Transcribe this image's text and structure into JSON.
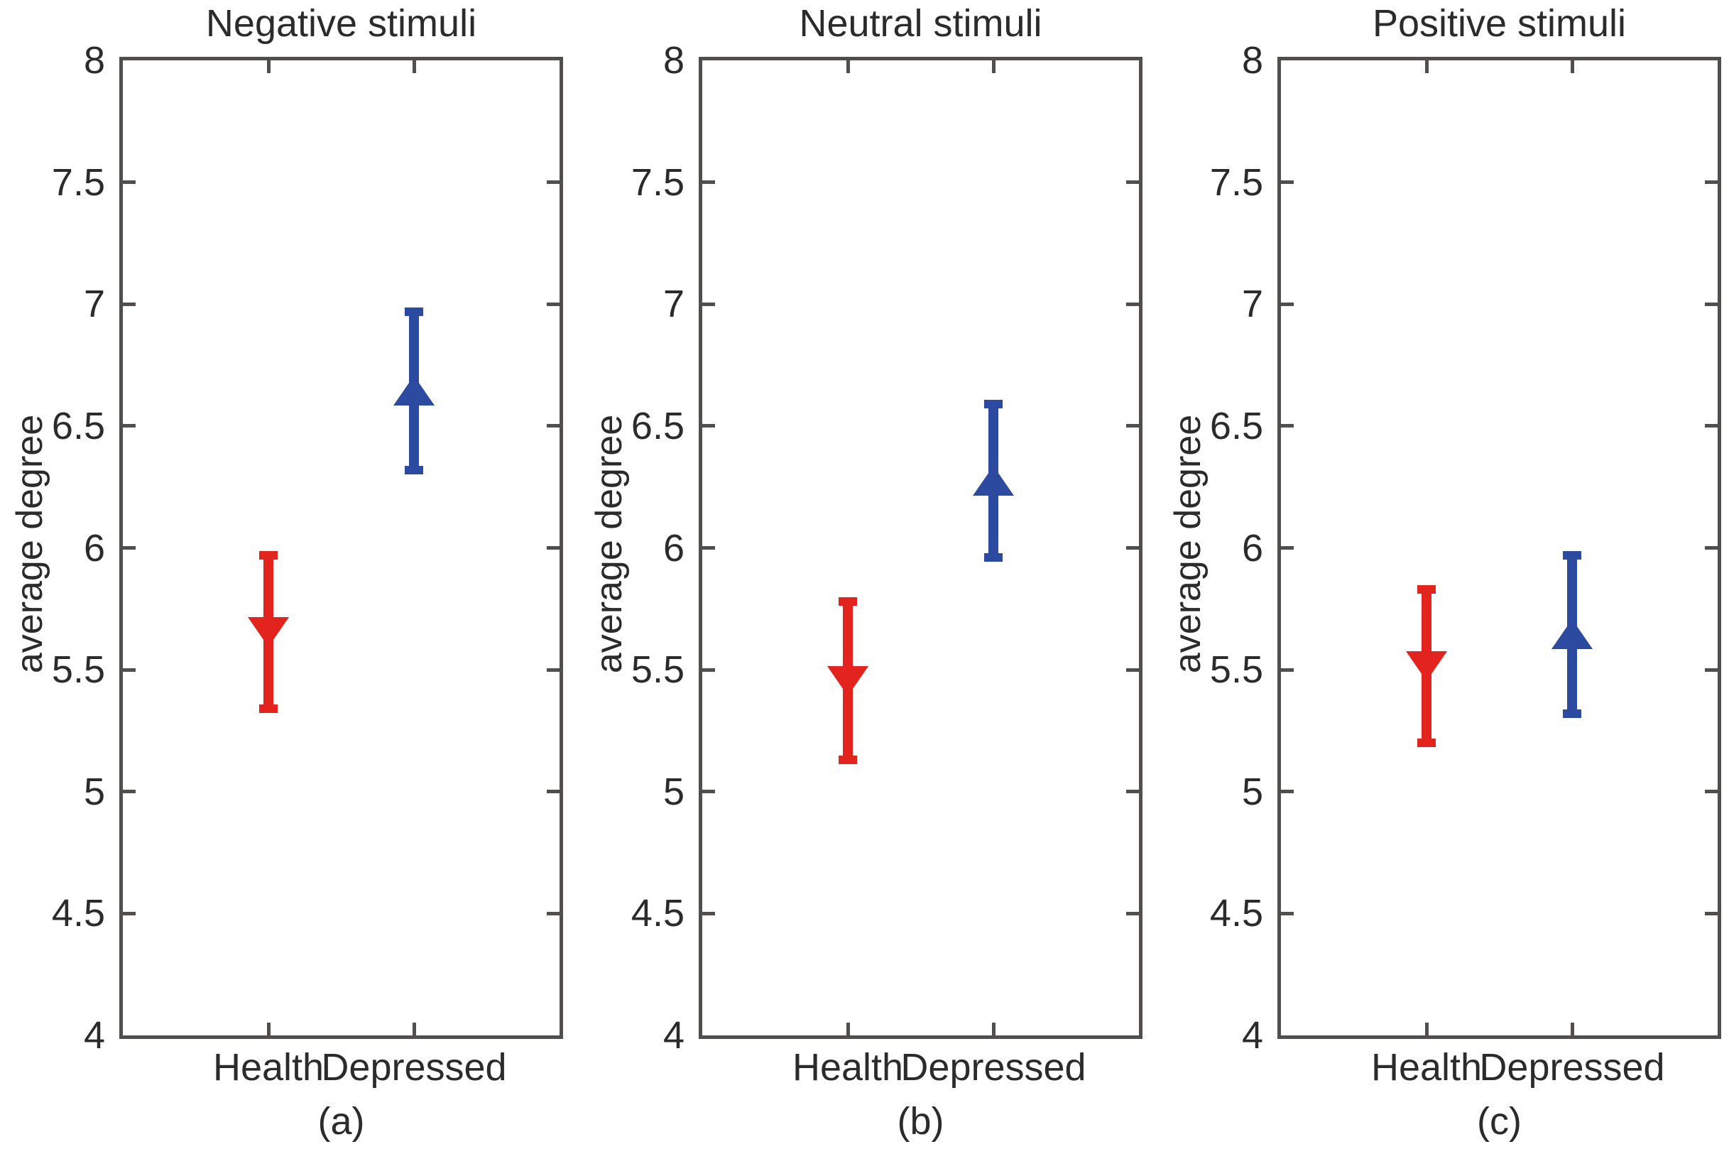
{
  "figure": {
    "ylabel": "average degree",
    "categories": [
      "Health",
      "Depressed"
    ],
    "colors": {
      "health_red": "#e2231e",
      "depressed_blue": "#2b4aa0",
      "axis_gray": "#514f4d",
      "text_dark": "#2b2b2b"
    }
  },
  "chart_data": [
    {
      "type": "scatter",
      "title": "Negative stimuli",
      "sublabel": "(a)",
      "xlabel": "",
      "ylabel": "average degree",
      "categories": [
        "Health",
        "Depressed"
      ],
      "ylim": [
        4,
        8
      ],
      "yticks": [
        4,
        4.5,
        5,
        5.5,
        6,
        6.5,
        7,
        7.5,
        8
      ],
      "grid": false,
      "legend": "none",
      "series": [
        {
          "name": "Health",
          "marker": "triangle-down",
          "color": "#e2231e",
          "mean": 5.66,
          "ci_low": 5.34,
          "ci_high": 5.97
        },
        {
          "name": "Depressed",
          "marker": "triangle-up",
          "color": "#2b4aa0",
          "mean": 6.64,
          "ci_low": 6.32,
          "ci_high": 6.97
        }
      ]
    },
    {
      "type": "scatter",
      "title": "Neutral stimuli",
      "sublabel": "(b)",
      "xlabel": "",
      "ylabel": "average degree",
      "categories": [
        "Health",
        "Depressed"
      ],
      "ylim": [
        4,
        8
      ],
      "yticks": [
        4,
        4.5,
        5,
        5.5,
        6,
        6.5,
        7,
        7.5,
        8
      ],
      "grid": false,
      "legend": "none",
      "series": [
        {
          "name": "Health",
          "marker": "triangle-down",
          "color": "#e2231e",
          "mean": 5.46,
          "ci_low": 5.13,
          "ci_high": 5.78
        },
        {
          "name": "Depressed",
          "marker": "triangle-up",
          "color": "#2b4aa0",
          "mean": 6.27,
          "ci_low": 5.96,
          "ci_high": 6.59
        }
      ]
    },
    {
      "type": "scatter",
      "title": "Positive stimuli",
      "sublabel": "(c)",
      "xlabel": "",
      "ylabel": "average degree",
      "categories": [
        "Health",
        "Depressed"
      ],
      "ylim": [
        4,
        8
      ],
      "yticks": [
        4,
        4.5,
        5,
        5.5,
        6,
        6.5,
        7,
        7.5,
        8
      ],
      "grid": false,
      "legend": "none",
      "series": [
        {
          "name": "Health",
          "marker": "triangle-down",
          "color": "#e2231e",
          "mean": 5.52,
          "ci_low": 5.2,
          "ci_high": 5.83
        },
        {
          "name": "Depressed",
          "marker": "triangle-up",
          "color": "#2b4aa0",
          "mean": 5.64,
          "ci_low": 5.32,
          "ci_high": 5.97
        }
      ]
    }
  ]
}
